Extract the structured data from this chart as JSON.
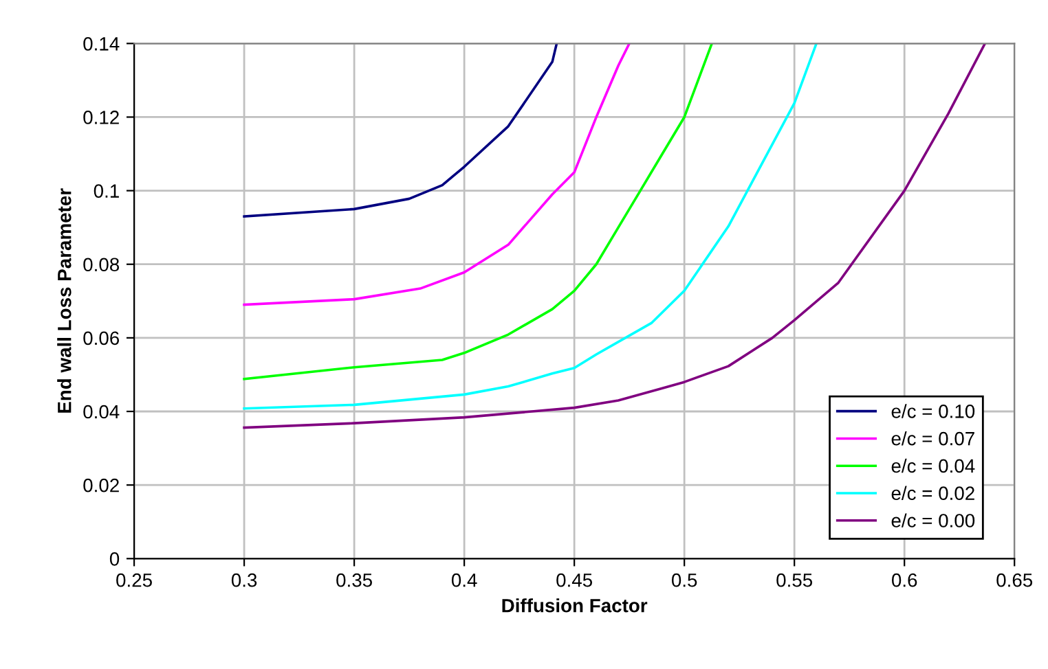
{
  "chart_data": {
    "type": "line",
    "xlabel": "Diffusion Factor",
    "ylabel": "End wall Loss Parameter",
    "xlim": [
      0.25,
      0.65
    ],
    "xticks": [
      0.25,
      0.3,
      0.35,
      0.4,
      0.45,
      0.5,
      0.55,
      0.6,
      0.65
    ],
    "ylim": [
      0,
      0.14
    ],
    "yticks": [
      0,
      0.02,
      0.04,
      0.06,
      0.08,
      0.1,
      0.12,
      0.14
    ],
    "grid": true,
    "legend": "bottom right",
    "marker": "none",
    "line_style": "solid",
    "series": [
      {
        "name": "e/c = 0.10",
        "color": "#000080",
        "x": [
          0.3,
          0.35,
          0.375,
          0.39,
          0.4,
          0.42,
          0.44,
          0.442
        ],
        "values": [
          0.093,
          0.095,
          0.0978,
          0.1015,
          0.1065,
          0.1175,
          0.135,
          0.14
        ]
      },
      {
        "name": "e/c = 0.07",
        "color": "#ff00ff",
        "x": [
          0.3,
          0.35,
          0.38,
          0.4,
          0.42,
          0.44,
          0.45,
          0.46,
          0.47,
          0.475
        ],
        "values": [
          0.069,
          0.0705,
          0.0734,
          0.0778,
          0.0853,
          0.099,
          0.105,
          0.12,
          0.134,
          0.14
        ]
      },
      {
        "name": "e/c = 0.04",
        "color": "#00ff00",
        "x": [
          0.3,
          0.35,
          0.39,
          0.4,
          0.42,
          0.44,
          0.45,
          0.46,
          0.47,
          0.48,
          0.49,
          0.5,
          0.5125
        ],
        "values": [
          0.0488,
          0.052,
          0.054,
          0.0559,
          0.0609,
          0.0678,
          0.0728,
          0.08,
          0.09,
          0.1,
          0.11,
          0.12,
          0.14
        ]
      },
      {
        "name": "e/c = 0.02",
        "color": "#00ffff",
        "x": [
          0.3,
          0.35,
          0.4,
          0.42,
          0.44,
          0.45,
          0.46,
          0.485,
          0.5,
          0.52,
          0.55,
          0.56
        ],
        "values": [
          0.0408,
          0.0418,
          0.0446,
          0.0468,
          0.0503,
          0.0518,
          0.0555,
          0.064,
          0.0728,
          0.0903,
          0.1238,
          0.14
        ]
      },
      {
        "name": "e/c = 0.00",
        "color": "#800080",
        "x": [
          0.3,
          0.35,
          0.4,
          0.45,
          0.47,
          0.49,
          0.5,
          0.52,
          0.54,
          0.55,
          0.57,
          0.6,
          0.62,
          0.6366
        ],
        "values": [
          0.0356,
          0.0368,
          0.0384,
          0.041,
          0.043,
          0.0463,
          0.048,
          0.0523,
          0.06,
          0.0648,
          0.075,
          0.1,
          0.121,
          0.14
        ]
      }
    ]
  }
}
